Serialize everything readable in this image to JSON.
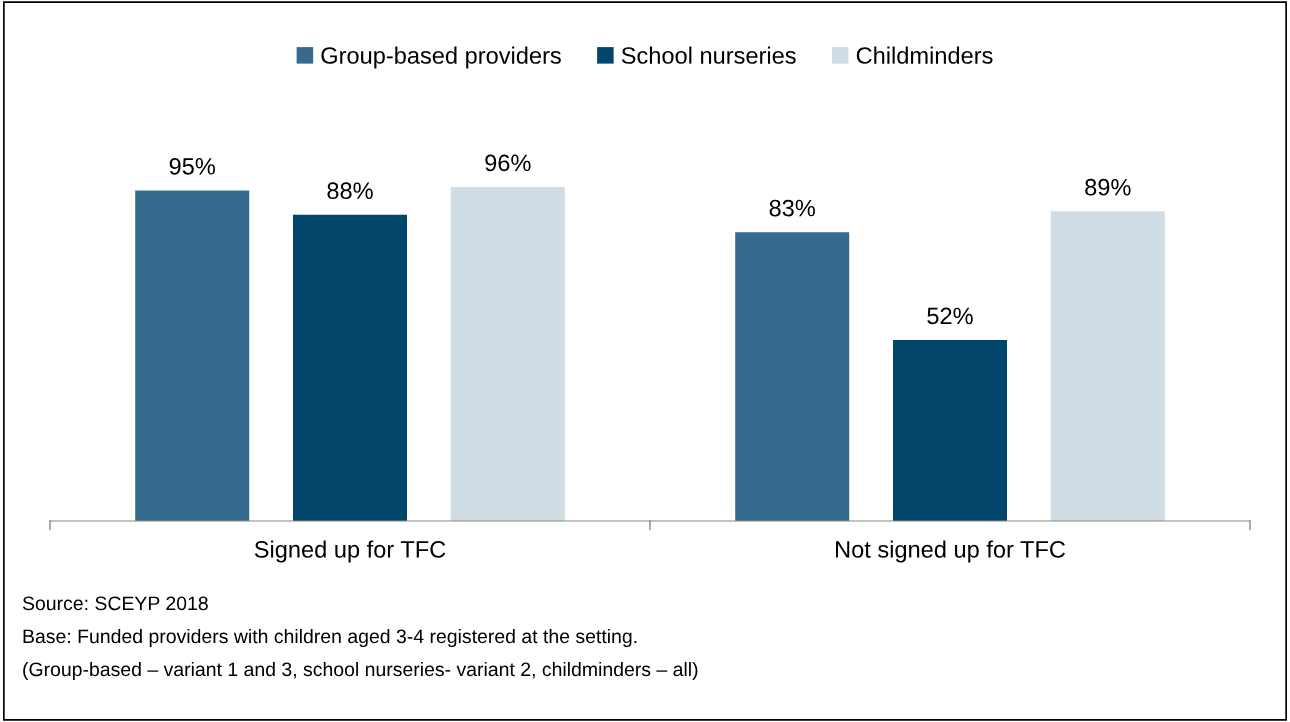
{
  "chart_data": {
    "type": "bar",
    "categories": [
      "Signed up for TFC",
      "Not signed up for TFC"
    ],
    "series": [
      {
        "name": "Group-based providers",
        "color": "#356b8c",
        "values": [
          95,
          83
        ],
        "value_labels": [
          "95%",
          "83%"
        ]
      },
      {
        "name": "School nurseries",
        "color": "#03466c",
        "values": [
          88,
          52
        ],
        "value_labels": [
          "88%",
          "52%"
        ]
      },
      {
        "name": "Childminders",
        "color": "#d0dde5",
        "values": [
          96,
          89
        ],
        "value_labels": [
          "96%",
          "89%"
        ]
      }
    ],
    "legend": "top",
    "grid": false,
    "annotations": [
      "Source: SCEYP 2018",
      "Base: Funded providers with children aged 3-4 registered at the setting.",
      "(Group-based – variant 1 and 3, school nurseries- variant 2, childminders – all)"
    ]
  }
}
